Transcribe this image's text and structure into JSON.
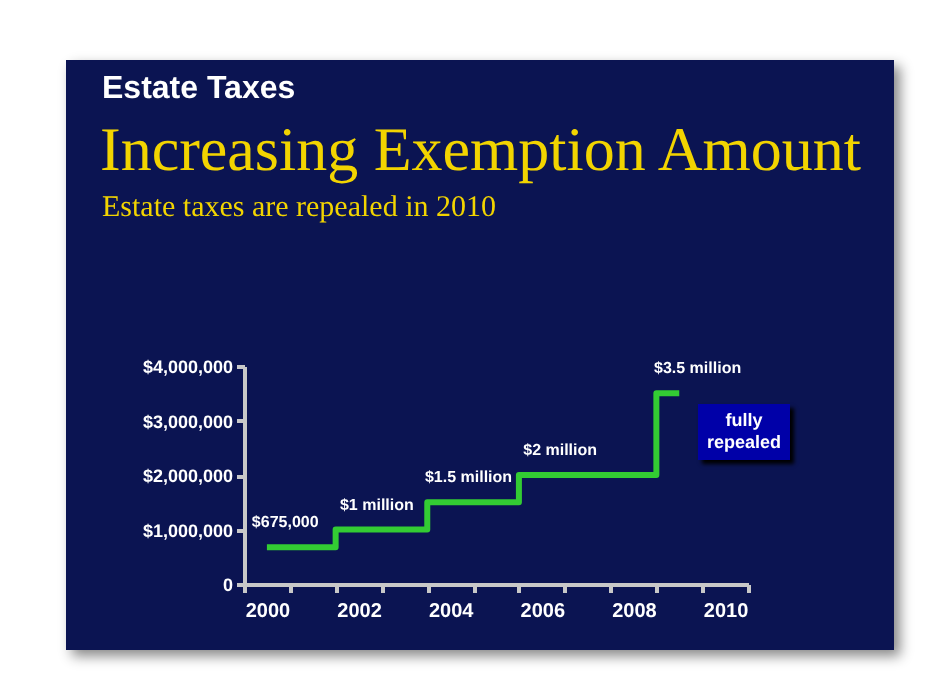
{
  "chart_data": {
    "type": "step",
    "title": "Increasing Exemption Amount",
    "subtitle": "Estate taxes are repealed in 2010",
    "annotations": [
      "Estate Taxes",
      "fully repealed"
    ],
    "categories": [
      "2000",
      null,
      "2002",
      null,
      "2004",
      null,
      "2006",
      null,
      "2008",
      null,
      "2010"
    ],
    "series": [
      {
        "color": "#33cc33",
        "values": [
          675000,
          675000,
          1000000,
          1000000,
          1500000,
          1500000,
          2000000,
          2000000,
          2000000,
          3500000,
          null
        ],
        "value_labels": [
          "$675,000",
          null,
          "$1 million",
          null,
          "$1.5 million",
          null,
          "$2 million",
          null,
          null,
          "$3.5 million",
          null
        ]
      }
    ],
    "ylim": [
      0,
      4000000
    ],
    "yticks": [
      0,
      {
        "value": 1000000,
        "label": "$1,000,000"
      },
      {
        "value": 2000000,
        "label": "$2,000,000"
      },
      {
        "value": 3000000,
        "label": "$3,000,000"
      },
      {
        "value": 4000000,
        "label": "$4,000,000"
      }
    ],
    "marker": "none",
    "line_style": "solid"
  }
}
